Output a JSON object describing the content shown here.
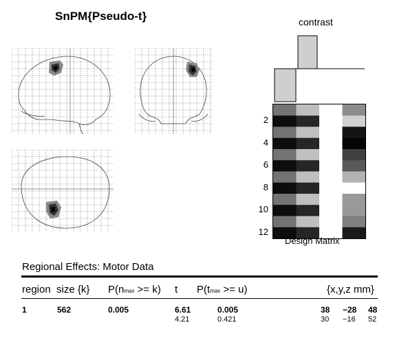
{
  "title": "SnPM{Pseudo-t}",
  "contrast_label": "contrast",
  "design_matrix": {
    "xlabel": "Design Matrix",
    "ticks": [
      "2",
      "4",
      "6",
      "8",
      "10",
      "12"
    ],
    "contrast_values": [
      -1,
      1,
      0,
      0
    ],
    "columns": [
      [
        0.45,
        0.05,
        0.45,
        0.05,
        0.45,
        0.05,
        0.45,
        0.05,
        0.45,
        0.05,
        0.45,
        0.05
      ],
      [
        0.75,
        0.15,
        0.75,
        0.15,
        0.75,
        0.15,
        0.75,
        0.15,
        0.75,
        0.15,
        0.75,
        0.15
      ],
      [
        1,
        1,
        1,
        1,
        1,
        1,
        1,
        1,
        1,
        1,
        1,
        1
      ],
      [
        0.55,
        0.82,
        0.08,
        0.02,
        0.25,
        0.35,
        0.7,
        1.0,
        0.6,
        0.6,
        0.5,
        0.1
      ]
    ]
  },
  "results": {
    "title": "Regional Effects: Motor Data",
    "headers": {
      "region": "region",
      "size": "size {k}",
      "pk_main": "P(n",
      "pk_sub": "max",
      "pk_tail": ">= k)",
      "t": "t",
      "pu_main": "P(t",
      "pu_sub": "max",
      "pu_tail": ">= u)",
      "coords": "{x,y,z mm}"
    },
    "rows": [
      {
        "region": "1",
        "size": "562",
        "pk": "0.005",
        "t": "6.61",
        "pu": "0.005",
        "x": "38",
        "y": "−28",
        "z": "48"
      },
      {
        "region": "",
        "size": "",
        "pk": "",
        "t": "4.21",
        "pu": "0.421",
        "x": "30",
        "y": "−16",
        "z": "52"
      }
    ]
  }
}
